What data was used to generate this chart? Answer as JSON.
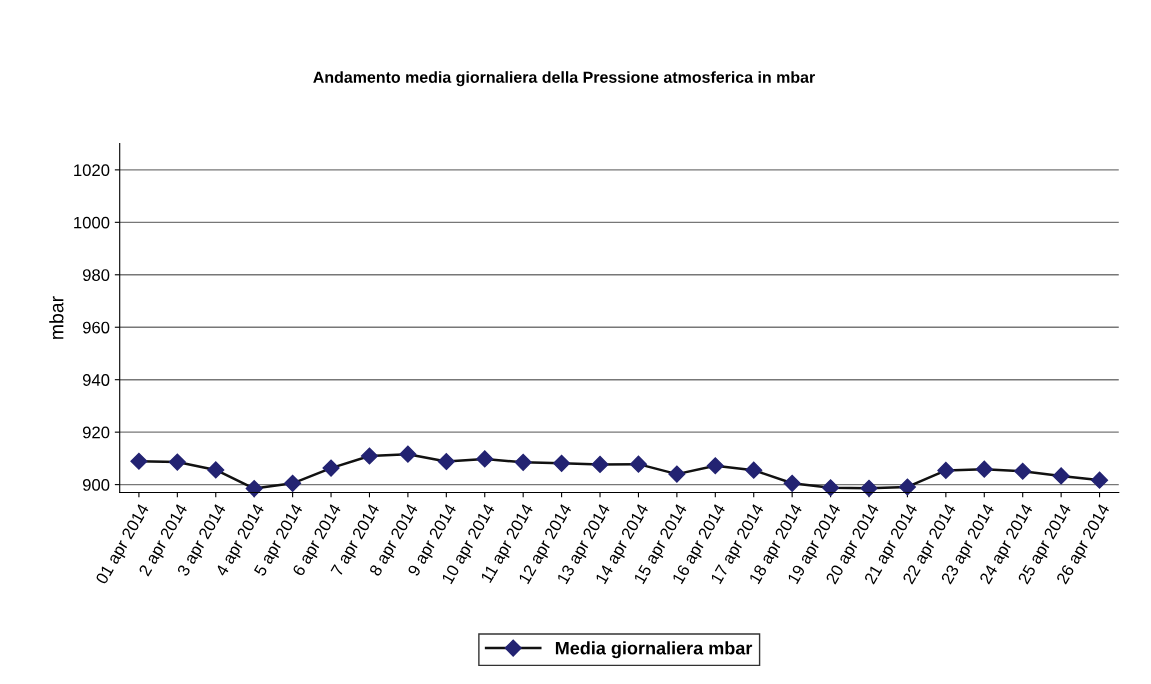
{
  "chart_data": {
    "type": "line",
    "title": "Andamento media giornaliera della Pressione atmosferica in mbar",
    "ylabel": "mbar",
    "categories": [
      "01 apr 2014",
      "2 apr 2014",
      "3 apr 2014",
      "4 apr 2014",
      "5 apr 2014",
      "6 apr 2014",
      "7 apr 2014",
      "8 apr 2014",
      "9 apr 2014",
      "10 apr 2014",
      "11 apr 2014",
      "12 apr 2014",
      "13 apr 2014",
      "14 apr 2014",
      "15 apr 2014",
      "16 apr 2014",
      "17 apr 2014",
      "18 apr 2014",
      "19 apr 2014",
      "20 apr 2014",
      "21 apr 2014",
      "22 apr 2014",
      "23 apr 2014",
      "24 apr 2014",
      "25 apr 2014",
      "26 apr 2014"
    ],
    "series": [
      {
        "name": "Media giornaliera mbar",
        "color": "#232372",
        "values": [
          908.9,
          908.6,
          905.6,
          898.5,
          900.5,
          906.3,
          910.9,
          911.6,
          908.8,
          909.8,
          908.5,
          908.1,
          907.7,
          907.8,
          904.0,
          907.2,
          905.5,
          900.5,
          898.8,
          898.6,
          899.1,
          905.4,
          905.9,
          905.1,
          903.3,
          901.7
        ]
      }
    ],
    "ylim": [
      897,
      1030
    ],
    "yticks": [
      900,
      920,
      940,
      960,
      980,
      1000,
      1020
    ],
    "grid": "y",
    "legend": "bottom",
    "marker": "diamond",
    "line_style": "solid"
  }
}
